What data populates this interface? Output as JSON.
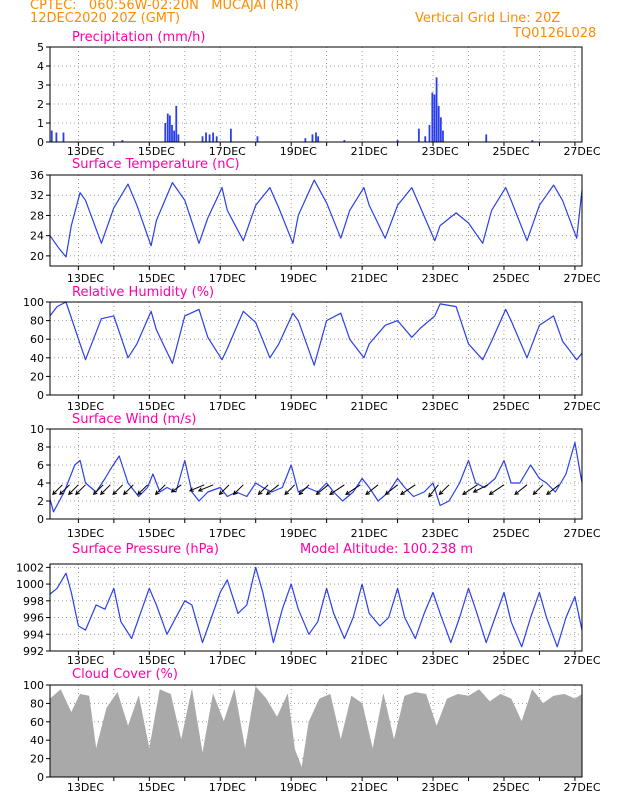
{
  "header": {
    "line1": "CPTEC:   060:56W-02:20N   MUCAJAI (RR)",
    "line2": "12DEC2020 20Z (GMT)",
    "grid_note": "Vertical Grid Line: 20Z",
    "code": "TQ0126L028"
  },
  "colors": {
    "header": "#ff8c00",
    "title": "#ff00aa",
    "series": "#2b3fe8",
    "cloud": "#a9a9a9",
    "wind_arrow": "#000000"
  },
  "x_tick_labels": [
    "13DEC",
    "15DEC",
    "17DEC",
    "19DEC",
    "21DEC",
    "23DEC",
    "25DEC",
    "27DEC"
  ],
  "chart_data": [
    {
      "type": "bar",
      "title": "Precipitation (mm/h)",
      "ylim": [
        0,
        5
      ],
      "yticks": [
        0,
        1,
        2,
        3,
        4,
        5
      ],
      "grid": true,
      "events": [
        {
          "day": 12.05,
          "value": 0.6
        },
        {
          "day": 12.18,
          "value": 0.5
        },
        {
          "day": 12.38,
          "value": 0.5
        },
        {
          "day": 14.04,
          "value": 0.1
        },
        {
          "day": 15.25,
          "value": 1.0
        },
        {
          "day": 15.32,
          "value": 1.5
        },
        {
          "day": 15.38,
          "value": 1.4
        },
        {
          "day": 15.44,
          "value": 0.9
        },
        {
          "day": 15.5,
          "value": 0.6
        },
        {
          "day": 15.56,
          "value": 1.9
        },
        {
          "day": 15.62,
          "value": 0.4
        },
        {
          "day": 16.3,
          "value": 0.3
        },
        {
          "day": 16.4,
          "value": 0.5
        },
        {
          "day": 16.5,
          "value": 0.4
        },
        {
          "day": 16.6,
          "value": 0.5
        },
        {
          "day": 16.7,
          "value": 0.3
        },
        {
          "day": 17.1,
          "value": 0.7
        },
        {
          "day": 17.85,
          "value": 0.3
        },
        {
          "day": 19.2,
          "value": 0.2
        },
        {
          "day": 19.4,
          "value": 0.4
        },
        {
          "day": 19.5,
          "value": 0.5
        },
        {
          "day": 19.56,
          "value": 0.3
        },
        {
          "day": 20.3,
          "value": 0.1
        },
        {
          "day": 21.8,
          "value": 0.1
        },
        {
          "day": 22.4,
          "value": 0.7
        },
        {
          "day": 22.58,
          "value": 0.3
        },
        {
          "day": 22.7,
          "value": 0.9
        },
        {
          "day": 22.78,
          "value": 2.6
        },
        {
          "day": 22.84,
          "value": 2.5
        },
        {
          "day": 22.9,
          "value": 3.4
        },
        {
          "day": 22.96,
          "value": 1.9
        },
        {
          "day": 23.02,
          "value": 1.3
        },
        {
          "day": 23.08,
          "value": 0.6
        },
        {
          "day": 24.3,
          "value": 0.4
        },
        {
          "day": 25.6,
          "value": 0.1
        }
      ]
    },
    {
      "type": "line",
      "title": "Surface Temperature (nC)",
      "ylim": [
        18,
        36
      ],
      "yticks": [
        20,
        24,
        28,
        32,
        36
      ],
      "grid": true,
      "x": [
        12.0,
        12.25,
        12.45,
        12.6,
        12.85,
        13.0,
        13.45,
        13.8,
        14.2,
        14.45,
        14.85,
        15.0,
        15.45,
        15.8,
        16.2,
        16.45,
        16.85,
        17.0,
        17.45,
        17.8,
        18.2,
        18.45,
        18.85,
        19.0,
        19.45,
        19.8,
        20.2,
        20.45,
        20.85,
        21.0,
        21.45,
        21.8,
        22.2,
        22.45,
        22.85,
        23.0,
        23.45,
        23.8,
        24.2,
        24.45,
        24.85,
        25.0,
        25.45,
        25.8,
        26.2,
        26.45,
        26.85,
        27.0
      ],
      "values": [
        24,
        21.5,
        19.8,
        26,
        32.5,
        31,
        22.5,
        29.5,
        34.2,
        30,
        22,
        27,
        34.5,
        31,
        22.5,
        27.5,
        33.5,
        29,
        23,
        30,
        33.5,
        29.5,
        22.5,
        28,
        35,
        30.5,
        23.5,
        29,
        33.5,
        30,
        23.5,
        30,
        33.5,
        29.5,
        23,
        26,
        28.5,
        26.5,
        22.5,
        29,
        33.5,
        31,
        23,
        30,
        34,
        31,
        23.5,
        33
      ]
    },
    {
      "type": "line",
      "title": "Relative Humidity (%)",
      "ylim": [
        0,
        100
      ],
      "yticks": [
        0,
        20,
        40,
        60,
        80,
        100
      ],
      "grid": true,
      "x": [
        12.0,
        12.2,
        12.45,
        12.85,
        13.0,
        13.45,
        13.8,
        14.2,
        14.45,
        14.85,
        15.0,
        15.45,
        15.8,
        16.2,
        16.45,
        16.85,
        17.0,
        17.45,
        17.8,
        18.2,
        18.45,
        18.85,
        19.0,
        19.45,
        19.8,
        20.2,
        20.45,
        20.85,
        21.0,
        21.45,
        21.8,
        22.2,
        22.45,
        22.85,
        23.0,
        23.45,
        23.8,
        24.2,
        24.45,
        24.85,
        25.0,
        25.45,
        25.8,
        26.2,
        26.45,
        26.85,
        27.0
      ],
      "values": [
        85,
        95,
        100,
        55,
        38,
        82,
        85,
        40,
        55,
        90,
        70,
        34,
        85,
        92,
        62,
        38,
        50,
        90,
        78,
        40,
        55,
        88,
        80,
        32,
        80,
        88,
        60,
        40,
        55,
        75,
        80,
        62,
        72,
        85,
        98,
        95,
        55,
        38,
        58,
        92,
        80,
        40,
        75,
        85,
        58,
        38,
        45
      ]
    },
    {
      "type": "line",
      "title": "Surface Wind (m/s)",
      "ylim": [
        0,
        10
      ],
      "yticks": [
        0,
        2,
        4,
        6,
        8,
        10
      ],
      "grid": true,
      "x": [
        12.0,
        12.1,
        12.4,
        12.7,
        12.85,
        13.0,
        13.3,
        13.55,
        13.7,
        13.95,
        14.2,
        14.5,
        14.75,
        14.9,
        15.1,
        15.3,
        15.55,
        15.8,
        16.0,
        16.2,
        16.45,
        16.8,
        17.0,
        17.25,
        17.55,
        17.8,
        18.0,
        18.25,
        18.55,
        18.8,
        19.0,
        19.25,
        19.55,
        19.8,
        20.0,
        20.25,
        20.55,
        20.8,
        21.0,
        21.25,
        21.55,
        21.8,
        22.0,
        22.25,
        22.55,
        22.8,
        23.0,
        23.25,
        23.55,
        23.8,
        24.0,
        24.25,
        24.55,
        24.8,
        25.0,
        25.25,
        25.55,
        25.8,
        26.0,
        26.25,
        26.55,
        26.8,
        27.0
      ],
      "values": [
        2.2,
        0.8,
        3,
        6,
        6.5,
        4,
        3,
        4.5,
        5.5,
        7,
        4,
        2.5,
        3.5,
        5,
        3,
        3.5,
        3,
        6.5,
        3,
        2,
        3,
        3.5,
        2.5,
        3,
        2.5,
        4,
        3.5,
        3,
        3.5,
        6,
        3,
        3.5,
        3,
        4,
        3,
        2,
        3,
        4.5,
        3.5,
        2,
        3,
        4.5,
        3.5,
        2.5,
        3,
        4,
        1.5,
        2,
        4,
        6.5,
        4,
        3.5,
        4.5,
        6.5,
        4,
        4,
        6,
        4.5,
        4,
        3,
        5,
        8.5,
        4
      ],
      "arrows": [
        {
          "day": 12.35,
          "u": -0.8,
          "v": -0.8
        },
        {
          "day": 12.55,
          "u": -0.8,
          "v": -0.8
        },
        {
          "day": 12.8,
          "u": -0.8,
          "v": -0.8
        },
        {
          "day": 13.0,
          "u": -0.8,
          "v": -0.8
        },
        {
          "day": 13.5,
          "u": -0.8,
          "v": -0.8
        },
        {
          "day": 13.7,
          "u": -0.8,
          "v": -0.8
        },
        {
          "day": 14.05,
          "u": -0.8,
          "v": -0.8
        },
        {
          "day": 14.35,
          "u": -0.8,
          "v": -0.8
        },
        {
          "day": 14.75,
          "u": -0.8,
          "v": -0.8
        },
        {
          "day": 15.25,
          "u": -0.8,
          "v": -0.8
        },
        {
          "day": 15.7,
          "u": -0.8,
          "v": -0.6
        },
        {
          "day": 16.35,
          "u": -1.2,
          "v": -0.5
        },
        {
          "day": 16.6,
          "u": -1.2,
          "v": -0.5
        },
        {
          "day": 17.05,
          "u": -0.8,
          "v": -0.8
        },
        {
          "day": 17.45,
          "u": -0.8,
          "v": -0.8
        },
        {
          "day": 18.15,
          "u": -0.8,
          "v": -0.8
        },
        {
          "day": 18.45,
          "u": -1.0,
          "v": -0.8
        },
        {
          "day": 18.9,
          "u": -0.8,
          "v": -0.8
        },
        {
          "day": 19.3,
          "u": -0.8,
          "v": -0.8
        },
        {
          "day": 19.85,
          "u": -1.0,
          "v": -0.8
        },
        {
          "day": 20.3,
          "u": -1.2,
          "v": -0.8
        },
        {
          "day": 20.75,
          "u": -1.2,
          "v": -0.8
        },
        {
          "day": 21.25,
          "u": -1.0,
          "v": -0.8
        },
        {
          "day": 21.8,
          "u": -1.0,
          "v": -0.8
        },
        {
          "day": 22.3,
          "u": -1.2,
          "v": -0.8
        },
        {
          "day": 22.95,
          "u": -0.8,
          "v": -1.0
        },
        {
          "day": 23.25,
          "u": -0.8,
          "v": -0.8
        },
        {
          "day": 24.05,
          "u": -1.2,
          "v": -0.8
        },
        {
          "day": 24.35,
          "u": -1.2,
          "v": -0.6
        },
        {
          "day": 24.8,
          "u": -1.2,
          "v": -0.8
        },
        {
          "day": 25.45,
          "u": -1.0,
          "v": -0.8
        },
        {
          "day": 25.9,
          "u": -0.8,
          "v": -0.8
        },
        {
          "day": 26.35,
          "u": -1.0,
          "v": -0.8
        }
      ]
    },
    {
      "type": "line",
      "title": "Surface Pressure (hPa)",
      "subtitle": "Model Altitude: 100.238 m",
      "ylim": [
        992,
        1002.4
      ],
      "yticks": [
        992,
        994,
        996,
        998,
        1000,
        1002
      ],
      "grid": true,
      "x": [
        12.0,
        12.2,
        12.45,
        12.6,
        12.8,
        13.0,
        13.3,
        13.55,
        13.8,
        14.0,
        14.3,
        14.55,
        14.8,
        15.0,
        15.3,
        15.55,
        15.8,
        16.0,
        16.3,
        16.55,
        16.8,
        17.0,
        17.3,
        17.55,
        17.8,
        18.0,
        18.3,
        18.55,
        18.8,
        19.0,
        19.3,
        19.55,
        19.8,
        20.0,
        20.3,
        20.55,
        20.8,
        21.0,
        21.3,
        21.55,
        21.8,
        22.0,
        22.3,
        22.55,
        22.8,
        23.0,
        23.3,
        23.55,
        23.8,
        24.0,
        24.3,
        24.55,
        24.8,
        25.0,
        25.3,
        25.55,
        25.8,
        26.0,
        26.3,
        26.55,
        26.8,
        27.0
      ],
      "values": [
        998.8,
        999.5,
        1001.3,
        999,
        995,
        994.5,
        997.5,
        997,
        999.5,
        995.5,
        993.5,
        996.5,
        999.5,
        997.5,
        994,
        996,
        998,
        997.5,
        993,
        996,
        999,
        1000.5,
        996.5,
        997.5,
        1002,
        999,
        993,
        997,
        1000,
        997,
        994,
        995.5,
        999.5,
        996.5,
        993.5,
        996,
        1000,
        996.5,
        995,
        996,
        999.5,
        996,
        993.5,
        996.5,
        999,
        996.5,
        993,
        996,
        999.5,
        997,
        993,
        996,
        999,
        995.5,
        992.5,
        996,
        999,
        996,
        992.5,
        996,
        998.5,
        994.5
      ]
    },
    {
      "type": "area",
      "title": "Cloud Cover (%)",
      "ylim": [
        0,
        100
      ],
      "yticks": [
        0,
        20,
        40,
        60,
        80,
        100
      ],
      "grid": true,
      "x": [
        12.0,
        12.3,
        12.6,
        12.85,
        13.1,
        13.3,
        13.6,
        13.9,
        14.2,
        14.5,
        14.8,
        15.1,
        15.4,
        15.7,
        16.0,
        16.3,
        16.6,
        16.9,
        17.2,
        17.5,
        17.8,
        18.1,
        18.4,
        18.7,
        18.9,
        19.1,
        19.3,
        19.6,
        19.9,
        20.2,
        20.5,
        20.8,
        21.1,
        21.4,
        21.7,
        22.0,
        22.3,
        22.6,
        22.9,
        23.2,
        23.5,
        23.8,
        24.1,
        24.4,
        24.7,
        25.0,
        25.3,
        25.6,
        25.9,
        26.2,
        26.5,
        26.8,
        27.0
      ],
      "values": [
        85,
        95,
        70,
        90,
        88,
        30,
        75,
        92,
        55,
        88,
        30,
        95,
        90,
        40,
        95,
        25,
        90,
        60,
        95,
        30,
        98,
        85,
        65,
        90,
        30,
        10,
        60,
        85,
        90,
        40,
        88,
        80,
        30,
        90,
        40,
        88,
        92,
        90,
        55,
        85,
        90,
        88,
        95,
        82,
        90,
        85,
        60,
        95,
        80,
        88,
        90,
        85,
        90
      ]
    }
  ]
}
